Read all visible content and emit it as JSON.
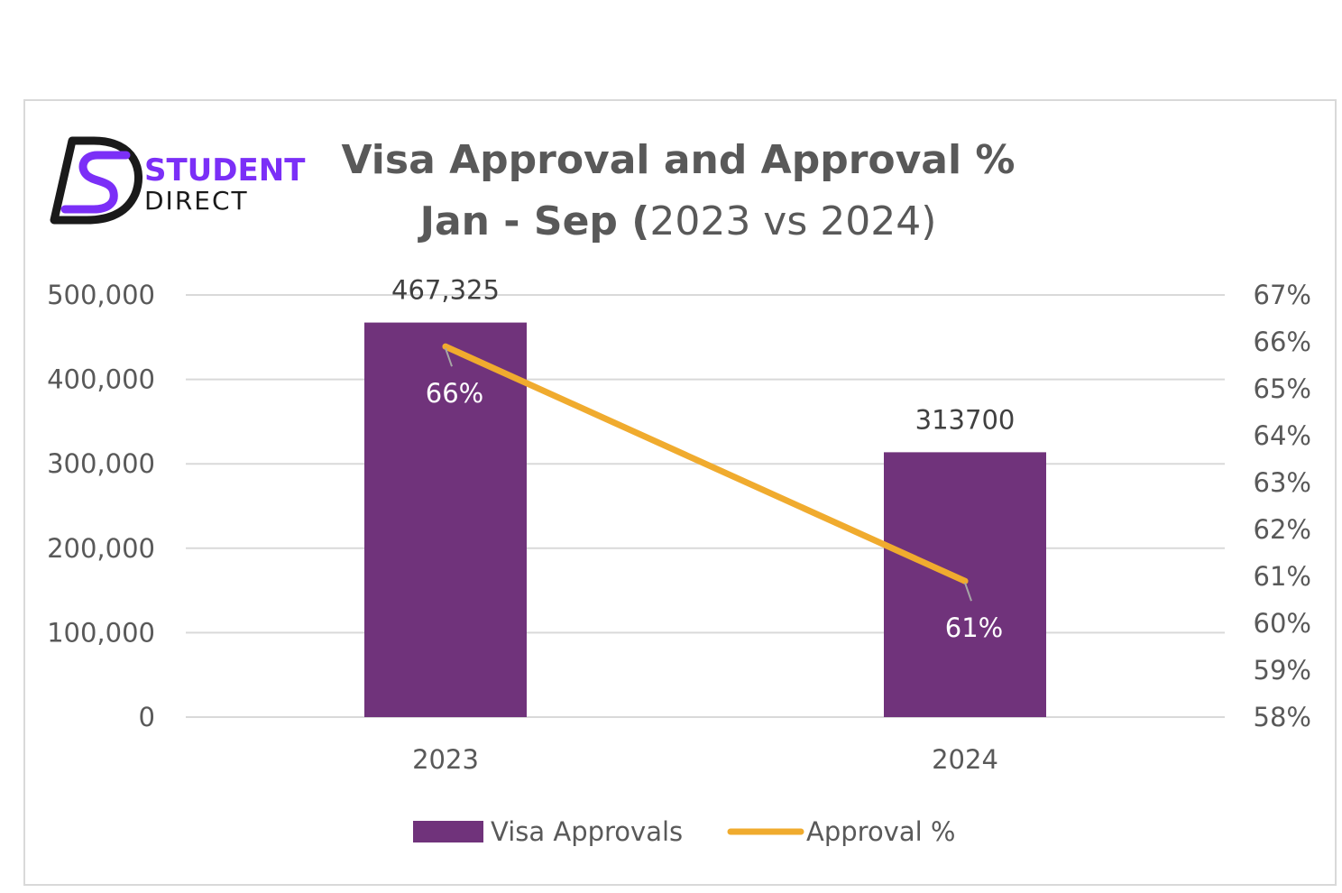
{
  "brand": {
    "name_line1": "STUDENT",
    "name_line2": "DIRECT",
    "primary_color": "#7b2ff7",
    "dark_color": "#1a1a1a",
    "icon": "ds-logo-mark"
  },
  "chart_data": {
    "type": "bar",
    "title_line1": "Visa Approval and Approval %",
    "title_line2_bold": "Jan - Sep (",
    "title_line2_normal": "2023 vs 2024)",
    "categories": [
      "2023",
      "2024"
    ],
    "series": [
      {
        "name": "Visa Approvals",
        "type": "bar",
        "axis": "left",
        "color": "#70337b",
        "values": [
          467325,
          313700
        ],
        "data_labels": [
          "467,325",
          "313700"
        ]
      },
      {
        "name": "Approval %",
        "type": "line",
        "axis": "right",
        "color": "#f0ab2e",
        "values": [
          65.9,
          60.9
        ],
        "data_labels": [
          "66%",
          "61%"
        ]
      }
    ],
    "y_left": {
      "min": 0,
      "max": 500000,
      "ticks": [
        0,
        100000,
        200000,
        300000,
        400000,
        500000
      ],
      "tick_labels": [
        "0",
        "100,000",
        "200,000",
        "300,000",
        "400,000",
        "500,000"
      ]
    },
    "y_right": {
      "min": 58,
      "max": 67,
      "ticks": [
        58,
        59,
        60,
        61,
        62,
        63,
        64,
        65,
        66,
        67
      ],
      "tick_labels": [
        "58%",
        "59%",
        "60%",
        "61%",
        "62%",
        "63%",
        "64%",
        "65%",
        "66%",
        "67%"
      ]
    },
    "grid": true,
    "legend_position": "bottom"
  }
}
